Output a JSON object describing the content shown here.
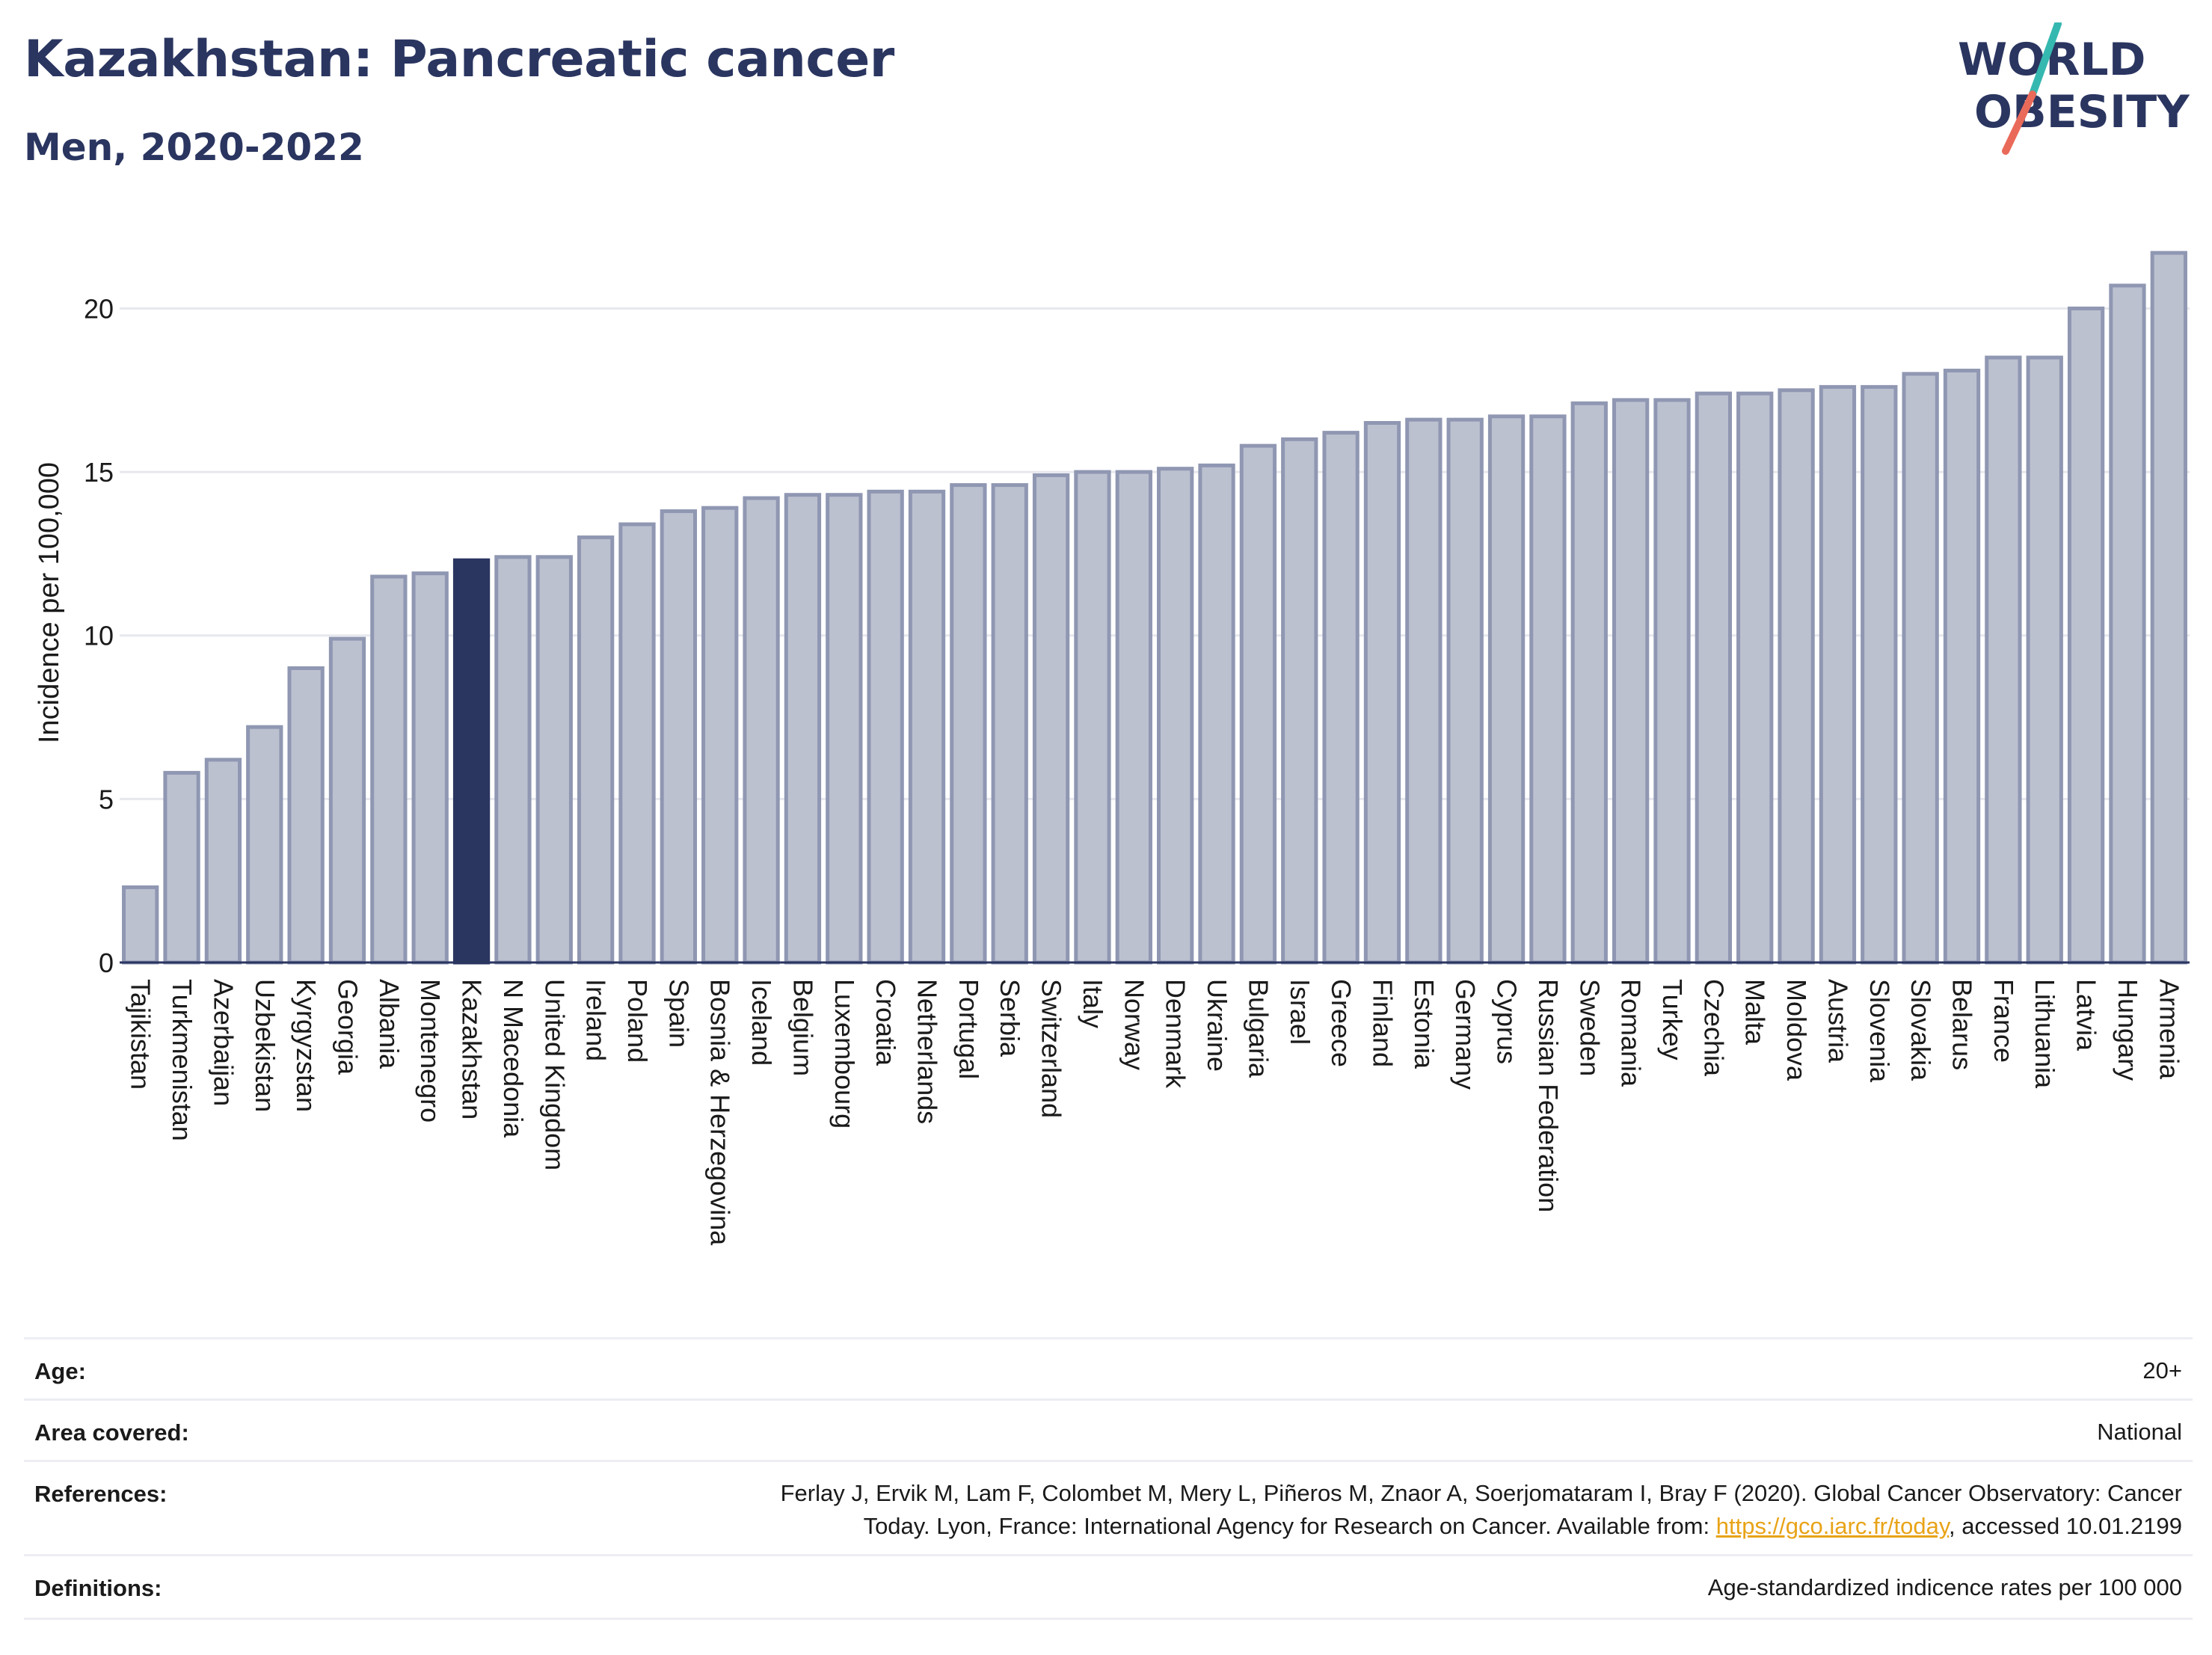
{
  "header": {
    "title": "Kazakhstan: Pancreatic cancer",
    "subtitle": "Men, 2020-2022"
  },
  "logo": {
    "line1": "WORLD",
    "line2": "OBESITY",
    "colors": {
      "text": "#2a3560",
      "slash_top": "#35b8b0",
      "slash_bottom": "#ea6a5a"
    }
  },
  "chart_data": {
    "type": "bar",
    "ylabel": "Incidence per 100,000",
    "xlabel": "",
    "ylim": [
      0,
      22
    ],
    "yticks": [
      0,
      5,
      10,
      15,
      20
    ],
    "grid": true,
    "highlight": "Kazakhstan",
    "colors": {
      "bar": "#bcc1d0",
      "bar_edge": "#8f97b2",
      "highlight": "#2a3560",
      "grid": "#e6e8ee"
    },
    "categories": [
      "Tajikistan",
      "Turkmenistan",
      "Azerbaijan",
      "Uzbekistan",
      "Kyrgyzstan",
      "Georgia",
      "Albania",
      "Montenegro",
      "Kazakhstan",
      "N Macedonia",
      "United Kingdom",
      "Ireland",
      "Poland",
      "Spain",
      "Bosnia & Herzegovina",
      "Iceland",
      "Belgium",
      "Luxembourg",
      "Croatia",
      "Netherlands",
      "Portugal",
      "Serbia",
      "Switzerland",
      "Italy",
      "Norway",
      "Denmark",
      "Ukraine",
      "Bulgaria",
      "Israel",
      "Greece",
      "Finland",
      "Estonia",
      "Germany",
      "Cyprus",
      "Russian Federation",
      "Sweden",
      "Romania",
      "Turkey",
      "Czechia",
      "Malta",
      "Moldova",
      "Austria",
      "Slovenia",
      "Slovakia",
      "Belarus",
      "France",
      "Lithuania",
      "Latvia",
      "Hungary",
      "Armenia"
    ],
    "values": [
      2.3,
      5.8,
      6.2,
      7.2,
      9.0,
      9.9,
      11.8,
      11.9,
      12.3,
      12.4,
      12.4,
      13.0,
      13.4,
      13.8,
      13.9,
      14.2,
      14.3,
      14.3,
      14.4,
      14.4,
      14.6,
      14.6,
      14.9,
      15.0,
      15.0,
      15.1,
      15.2,
      15.8,
      16.0,
      16.2,
      16.5,
      16.6,
      16.6,
      16.7,
      16.7,
      17.1,
      17.2,
      17.2,
      17.4,
      17.4,
      17.5,
      17.6,
      17.6,
      18.0,
      18.1,
      18.5,
      18.5,
      20.0,
      20.7,
      21.7
    ]
  },
  "meta": {
    "age_label": "Age:",
    "age_value": "20+",
    "area_label": "Area covered:",
    "area_value": "National",
    "references_label": "References:",
    "references_line1": "Ferlay J, Ervik M, Lam F, Colombet M, Mery L, Piñeros M, Znaor A, Soerjomataram I, Bray F (2020). Global Cancer Observatory: Cancer",
    "references_line2_pre": "Today. Lyon, France: International Agency for Research on Cancer. Available from: ",
    "references_link": "https://gco.iarc.fr/today",
    "references_line2_post": ", accessed 10.01.2199",
    "definitions_label": "Definitions:",
    "definitions_value": "Age-standardized indicence rates per 100 000"
  }
}
